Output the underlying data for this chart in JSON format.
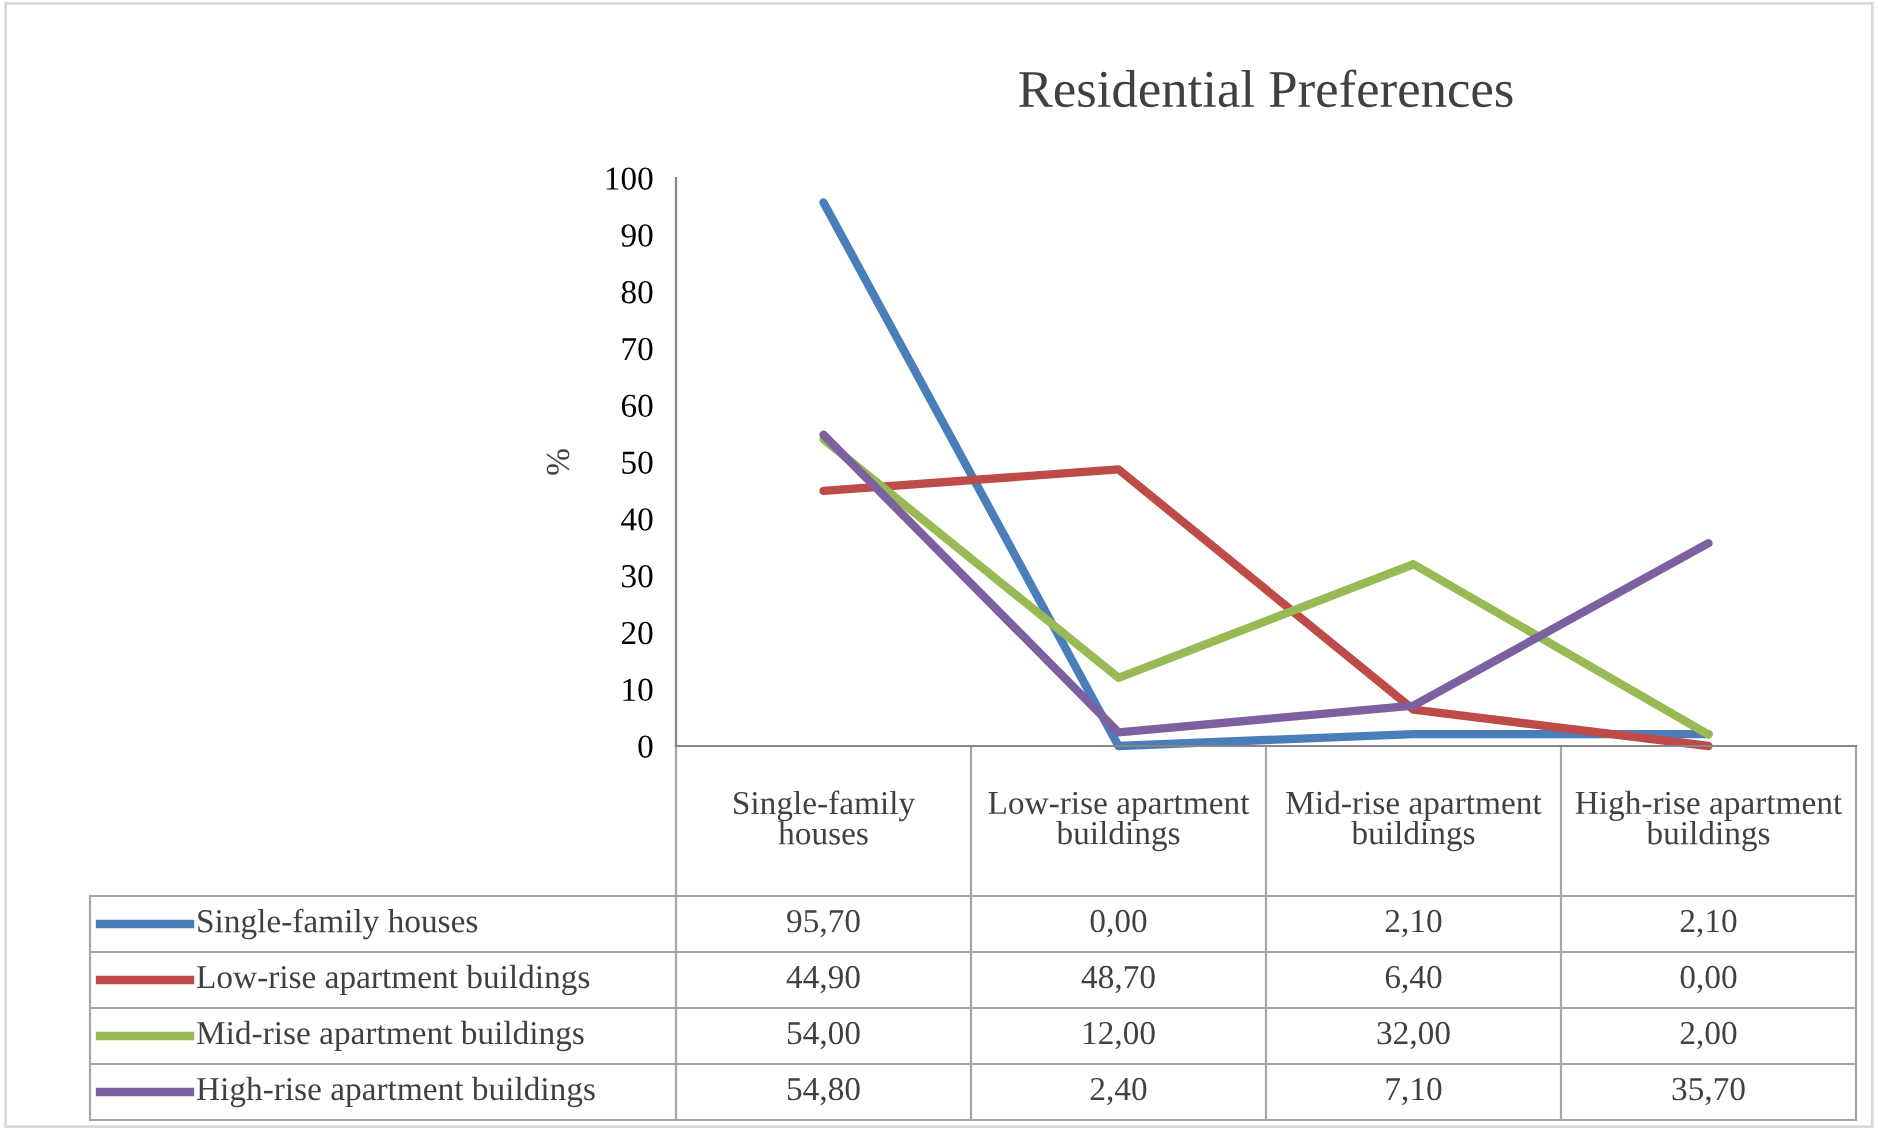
{
  "chart_data": {
    "type": "line",
    "title": "Residential Preferences",
    "ylabel": "%",
    "categories": [
      "Single-family houses",
      "Low-rise apartment buildings",
      "Mid-rise apartment buildings",
      "High-rise apartment buildings"
    ],
    "ylim": [
      0,
      100
    ],
    "yticks": [
      0,
      10,
      20,
      30,
      40,
      50,
      60,
      70,
      80,
      90,
      100
    ],
    "grid": false,
    "legend": "bottom",
    "marker": "none",
    "line_style": "solid",
    "series": [
      {
        "name": "Single-family houses",
        "color": "#4a7ebb",
        "values": [
          95.7,
          0.0,
          2.1,
          2.1
        ],
        "value_labels": [
          "95,70",
          "0,00",
          "2,10",
          "2,10"
        ]
      },
      {
        "name": "Low-rise apartment buildings",
        "color": "#be4b48",
        "values": [
          44.9,
          48.7,
          6.4,
          0.0
        ],
        "value_labels": [
          "44,90",
          "48,70",
          "6,40",
          "0,00"
        ]
      },
      {
        "name": "Mid-rise apartment buildings",
        "color": "#98b954",
        "values": [
          54.0,
          12.0,
          32.0,
          2.0
        ],
        "value_labels": [
          "54,00",
          "12,00",
          "32,00",
          "2,00"
        ]
      },
      {
        "name": "High-rise apartment buildings",
        "color": "#7d60a0",
        "values": [
          54.8,
          2.4,
          7.1,
          35.7
        ],
        "value_labels": [
          "54,80",
          "2,40",
          "7,10",
          "35,70"
        ]
      }
    ]
  }
}
